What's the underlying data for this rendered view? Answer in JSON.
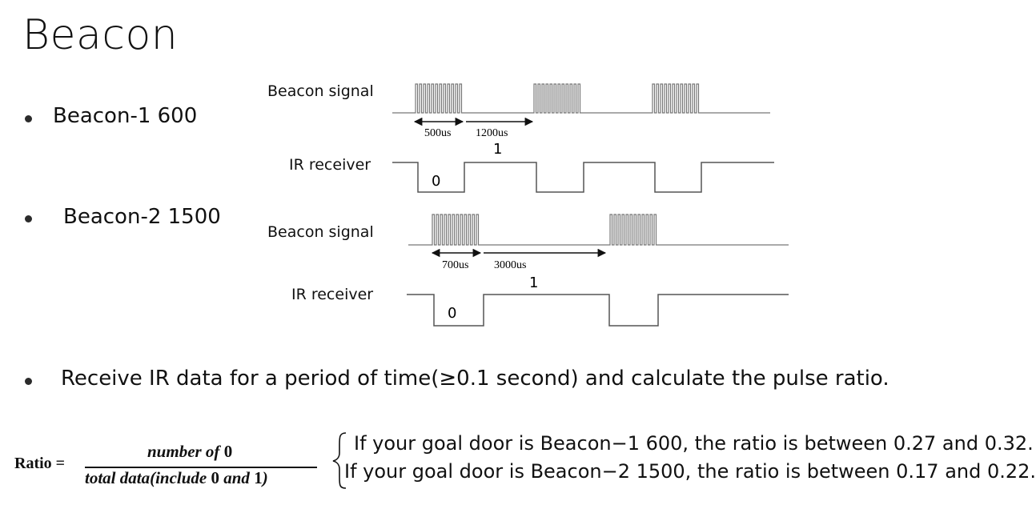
{
  "title": "Beacon",
  "bullets": {
    "beacon1": "Beacon-1 600",
    "beacon2": "Beacon-2 1500",
    "receive": "Receive IR data for a period of time(≥0.1 second) and calculate the pulse ratio."
  },
  "diagram1": {
    "signal_label": "Beacon signal",
    "receiver_label": "IR receiver",
    "dim_on": "500us",
    "dim_off": "1200us",
    "bit_zero": "0",
    "bit_one": "1"
  },
  "diagram2": {
    "signal_label": "Beacon signal",
    "receiver_label": "IR receiver",
    "dim_on": "700us",
    "dim_off": "3000us",
    "bit_zero": "0",
    "bit_one": "1"
  },
  "formula": {
    "ratio_label": "Ratio =",
    "numerator_pre": "number of ",
    "numerator_zero": "0",
    "denominator_pre": "total data(include ",
    "denominator_zero": "0",
    "denominator_mid": " and ",
    "denominator_one": "1",
    "denominator_post": ")",
    "condition1": "If your goal door is Beacon−1 600, the ratio is between 0.27 and 0.32.",
    "condition2": "If your goal door is Beacon−2 1500, the ratio is between 0.17 and 0.22."
  }
}
